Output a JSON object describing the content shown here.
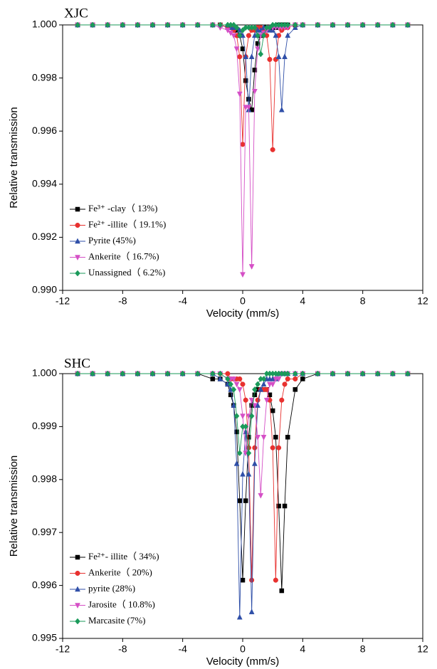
{
  "chart_data": [
    {
      "type": "line",
      "title": "XJC",
      "x_label": "Velocity (mm/s)",
      "y_label": "Relative transmission",
      "xlim": [
        -12,
        12
      ],
      "xticks": [
        -12,
        -8,
        -4,
        0,
        4,
        8,
        12
      ],
      "ylim": [
        0.99,
        1
      ],
      "yticks": [
        {
          "value": 0.99,
          "label": "0.990"
        },
        0.992,
        0.994,
        0.996,
        0.998,
        {
          "value": 1,
          "label": "1.000"
        }
      ],
      "legend": "lower left",
      "x": [
        -11,
        -10,
        -9,
        -8,
        -7,
        -6,
        -5,
        -4,
        -3,
        -2,
        -1.5,
        -1,
        -0.8,
        -0.6,
        -0.4,
        -0.2,
        0,
        0.2,
        0.4,
        0.6,
        0.8,
        1,
        1.2,
        1.4,
        1.6,
        1.8,
        2,
        2.2,
        2.4,
        2.6,
        2.8,
        3,
        3.5,
        4,
        5,
        6,
        7,
        8,
        9,
        10,
        11
      ],
      "series": [
        {
          "name": "Fe³⁺ -clay（ 13%)",
          "color": "#000000",
          "marker": "square",
          "values": [
            1,
            1,
            1,
            1,
            1,
            1,
            1,
            1,
            1,
            1,
            1,
            0.9999,
            0.9999,
            0.9998,
            0.9998,
            0.9996,
            0.9991,
            0.9979,
            0.9972,
            0.9968,
            0.9983,
            0.9993,
            0.9996,
            0.9998,
            0.9999,
            0.9999,
            0.9999,
            0.9999,
            1,
            1,
            1,
            1,
            1,
            1,
            1,
            1,
            1,
            1,
            1,
            1,
            1
          ]
        },
        {
          "name": "Fe²⁺ -illite（ 19.1%)",
          "color": "#e8312f",
          "marker": "circle",
          "values": [
            1,
            1,
            1,
            1,
            1,
            1,
            1,
            1,
            1,
            1,
            1,
            0.9999,
            0.9999,
            0.9998,
            0.9996,
            0.9988,
            0.9955,
            0.9988,
            0.9996,
            0.9998,
            0.9998,
            0.9999,
            0.9999,
            0.9998,
            0.9996,
            0.9987,
            0.9953,
            0.9987,
            0.9996,
            0.9998,
            0.9999,
            0.9999,
            1,
            1,
            1,
            1,
            1,
            1,
            1,
            1,
            1
          ]
        },
        {
          "name": "Pyrite (45%)",
          "color": "#2f4fa8",
          "marker": "triangle-up",
          "values": [
            1,
            1,
            1,
            1,
            1,
            1,
            1,
            1,
            1,
            1,
            1,
            1,
            0.9999,
            0.9999,
            0.9999,
            0.9998,
            0.9996,
            0.9988,
            0.9968,
            0.9988,
            0.9996,
            0.9998,
            0.9998,
            0.9999,
            0.9999,
            0.9998,
            0.9998,
            0.9996,
            0.9988,
            0.9968,
            0.9988,
            0.9996,
            0.9999,
            1,
            1,
            1,
            1,
            1,
            1,
            1,
            1
          ]
        },
        {
          "name": "Ankerite（ 16.7%)",
          "color": "#d54fc6",
          "marker": "triangle-down",
          "values": [
            1,
            1,
            1,
            1,
            1,
            1,
            1,
            1,
            1,
            1,
            0.9999,
            0.9998,
            0.9997,
            0.9996,
            0.9991,
            0.9974,
            0.9906,
            0.9969,
            0.9969,
            0.9909,
            0.9975,
            0.9991,
            0.9996,
            0.9997,
            0.9998,
            0.9999,
            0.9999,
            0.9999,
            0.9999,
            0.9999,
            0.9999,
            0.9999,
            1,
            1,
            1,
            1,
            1,
            1,
            1,
            1,
            1
          ]
        },
        {
          "name": "Unassigned（ 6.2%)",
          "color": "#1a9a5a",
          "marker": "diamond",
          "values": [
            1,
            1,
            1,
            1,
            1,
            1,
            1,
            1,
            1,
            1,
            1,
            1,
            1,
            1,
            0.9999,
            0.9996,
            0.9998,
            0.9999,
            0.9999,
            0.9999,
            0.9999,
            0.9996,
            0.9989,
            0.9996,
            0.9999,
            0.9999,
            1,
            1,
            1,
            1,
            1,
            1,
            1,
            1,
            1,
            1,
            1,
            1,
            1,
            1,
            1
          ]
        }
      ]
    },
    {
      "type": "line",
      "title": "SHC",
      "x_label": "Velocity (mm/s)",
      "y_label": "Relative transmission",
      "xlim": [
        -12,
        12
      ],
      "xticks": [
        -12,
        -8,
        -4,
        0,
        4,
        8,
        12
      ],
      "ylim": [
        0.995,
        1
      ],
      "yticks": [
        0.995,
        0.996,
        0.997,
        0.998,
        0.999,
        {
          "value": 1,
          "label": "1.000"
        }
      ],
      "legend": "lower left",
      "x": [
        -11,
        -10,
        -9,
        -8,
        -7,
        -6,
        -5,
        -4,
        -3,
        -2,
        -1.5,
        -1,
        -0.8,
        -0.6,
        -0.4,
        -0.2,
        0,
        0.2,
        0.4,
        0.6,
        0.8,
        1,
        1.2,
        1.4,
        1.6,
        1.8,
        2,
        2.2,
        2.4,
        2.6,
        2.8,
        3,
        3.5,
        4,
        5,
        6,
        7,
        8,
        9,
        10,
        11
      ],
      "series": [
        {
          "name": "Fe²⁺- illite（ 34%)",
          "color": "#000000",
          "marker": "square",
          "values": [
            1,
            1,
            1,
            1,
            1,
            1,
            1,
            1,
            1,
            0.9999,
            0.9999,
            0.9998,
            0.9996,
            0.9994,
            0.9989,
            0.9976,
            0.9961,
            0.9976,
            0.9988,
            0.9994,
            0.9996,
            0.9997,
            0.9997,
            0.9997,
            0.9997,
            0.9996,
            0.9993,
            0.9988,
            0.9975,
            0.9959,
            0.9975,
            0.9988,
            0.9997,
            0.9999,
            1,
            1,
            1,
            1,
            1,
            1,
            1
          ]
        },
        {
          "name": "Ankerite（ 20%)",
          "color": "#e8312f",
          "marker": "circle",
          "values": [
            1,
            1,
            1,
            1,
            1,
            1,
            1,
            1,
            1,
            1,
            1,
            1,
            0.9999,
            0.9999,
            0.9999,
            0.9999,
            0.9998,
            0.9995,
            0.9986,
            0.9961,
            0.9986,
            0.9995,
            0.9997,
            0.9997,
            0.9997,
            0.9995,
            0.9986,
            0.9961,
            0.9986,
            0.9995,
            0.9998,
            0.9999,
            0.9999,
            1,
            1,
            1,
            1,
            1,
            1,
            1,
            1
          ]
        },
        {
          "name": "pyrite (28%)",
          "color": "#2f4fa8",
          "marker": "triangle-up",
          "values": [
            1,
            1,
            1,
            1,
            1,
            1,
            1,
            1,
            1,
            1,
            0.9999,
            0.9998,
            0.9997,
            0.9994,
            0.9983,
            0.9954,
            0.9981,
            0.9989,
            0.9981,
            0.9955,
            0.9983,
            0.9994,
            0.9997,
            0.9998,
            0.9999,
            0.9999,
            0.9999,
            0.9999,
            1,
            1,
            1,
            1,
            1,
            1,
            1,
            1,
            1,
            1,
            1,
            1,
            1
          ]
        },
        {
          "name": "Jarosite（ 10.8%)",
          "color": "#d54fc6",
          "marker": "triangle-down",
          "values": [
            1,
            1,
            1,
            1,
            1,
            1,
            1,
            1,
            1,
            1,
            1,
            0.9999,
            0.9999,
            0.9999,
            0.9998,
            0.9997,
            0.9992,
            0.9985,
            0.9992,
            0.9995,
            0.9994,
            0.9988,
            0.9977,
            0.9988,
            0.9995,
            0.9998,
            0.9998,
            0.9999,
            0.9999,
            1,
            1,
            1,
            1,
            1,
            1,
            1,
            1,
            1,
            1,
            1,
            1
          ]
        },
        {
          "name": "Marcasite (7%)",
          "color": "#1a9a5a",
          "marker": "diamond",
          "values": [
            1,
            1,
            1,
            1,
            1,
            1,
            1,
            1,
            1,
            1,
            1,
            0.9999,
            0.9998,
            0.9997,
            0.9992,
            0.9985,
            0.999,
            0.999,
            0.9985,
            0.9992,
            0.9997,
            0.9998,
            0.9999,
            0.9999,
            1,
            1,
            1,
            1,
            1,
            1,
            1,
            1,
            1,
            1,
            1,
            1,
            1,
            1,
            1,
            1,
            1
          ]
        }
      ]
    }
  ]
}
